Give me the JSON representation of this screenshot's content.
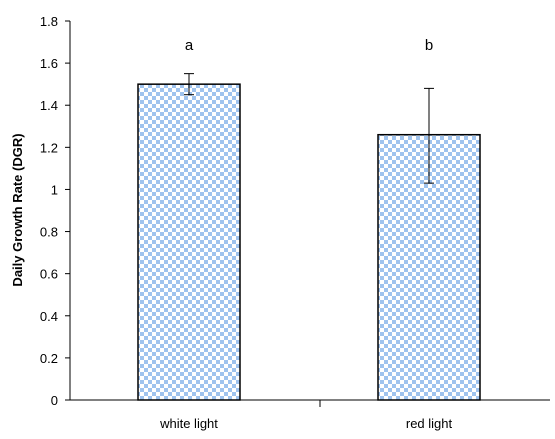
{
  "chart_data": {
    "type": "bar",
    "title": "",
    "xlabel": "",
    "ylabel": "Daily Growth Rate (DGR)",
    "categories": [
      "white light",
      "red light"
    ],
    "values": [
      1.5,
      1.26
    ],
    "error_bars": [
      {
        "low": 1.45,
        "high": 1.55
      },
      {
        "low": 1.03,
        "high": 1.48
      }
    ],
    "significance_letters": [
      "a",
      "b"
    ],
    "ylim": [
      0,
      1.8
    ],
    "yticks": [
      "0",
      "0.2",
      "0.4",
      "0.6",
      "0.8",
      "1",
      "1.2",
      "1.4",
      "1.6",
      "1.8"
    ],
    "grid": false,
    "legend": "none",
    "colors": {
      "bar_fill_light": "#ffffff",
      "bar_fill_check": "#9fc3ee",
      "bar_edge": "#000000",
      "axis": "#000000"
    }
  }
}
